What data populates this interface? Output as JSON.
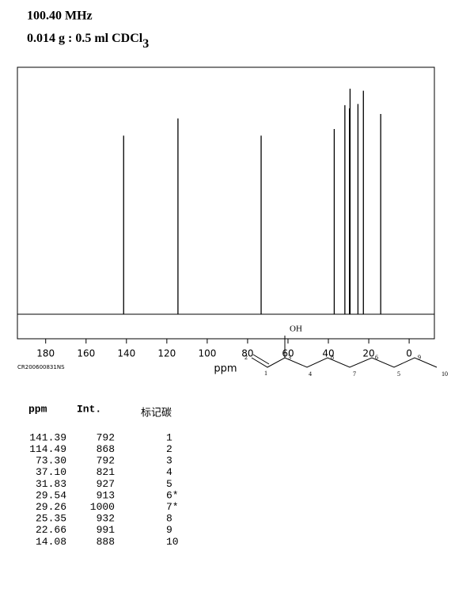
{
  "chart_data": {
    "type": "stem",
    "title": "100.40 MHz",
    "subtitle": "0.014 g : 0.5 ml CDCl",
    "subtitle_subscript": "3",
    "x_label": "ppm",
    "code": "CR200600831NS",
    "x": [
      141.39,
      114.49,
      73.3,
      37.1,
      31.83,
      29.54,
      29.26,
      25.35,
      22.66,
      14.08
    ],
    "x_labels": [
      "141.39",
      "114.49",
      "73.30",
      "37.10",
      "31.83",
      "29.54",
      "29.26",
      "25.35",
      "22.66",
      "14.08"
    ],
    "values": [
      792,
      868,
      792,
      821,
      927,
      913,
      1000,
      932,
      991,
      888
    ],
    "peak_labels": [
      "1",
      "2",
      "3",
      "4",
      "5",
      "6*",
      "7*",
      "8",
      "9",
      "10"
    ],
    "columns": [
      "ppm",
      "Int.",
      "标记碳"
    ],
    "xlim": [
      194,
      -12.5
    ],
    "ylim": [
      -109,
      1095
    ],
    "xticks": [
      180,
      160,
      140,
      120,
      100,
      80,
      60,
      40,
      20,
      0
    ],
    "color": "#000000"
  },
  "structure": {
    "substituent": "OH",
    "atom_labels": [
      "2",
      "1",
      "3",
      "4",
      "8",
      "7",
      "6",
      "5",
      "9",
      "10"
    ]
  }
}
